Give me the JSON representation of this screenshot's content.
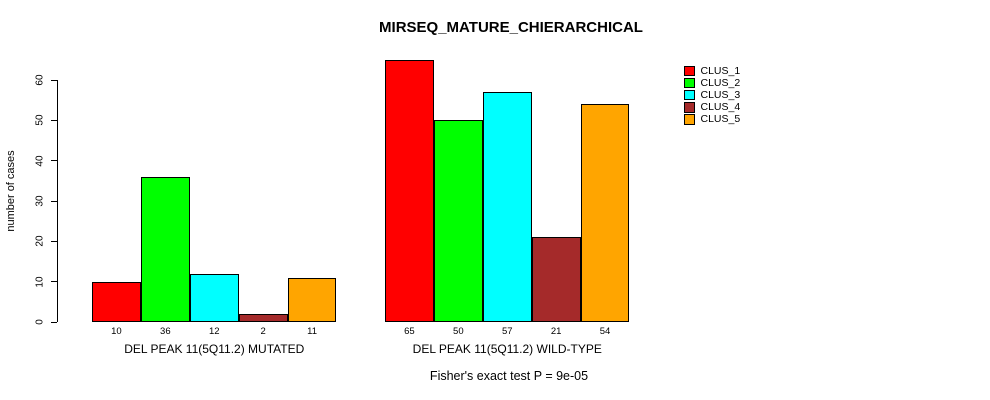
{
  "chart_data": {
    "type": "bar",
    "title": "MIRSEQ_MATURE_CHIERARCHICAL",
    "ylabel": "number of cases",
    "xlabel": "",
    "caption": "Fisher's exact test P = 9e-05",
    "ylim": [
      0,
      60
    ],
    "yticks": [
      0,
      10,
      20,
      30,
      40,
      50,
      60
    ],
    "grid": false,
    "legend_position": "top-right",
    "bar_value_labels_shown": true,
    "categories": [
      "DEL PEAK 11(5Q11.2) MUTATED",
      "DEL PEAK 11(5Q11.2) WILD-TYPE"
    ],
    "series": [
      {
        "name": "CLUS_1",
        "color": "#FF0000",
        "values": [
          10,
          65
        ]
      },
      {
        "name": "CLUS_2",
        "color": "#00FF00",
        "values": [
          36,
          50
        ]
      },
      {
        "name": "CLUS_3",
        "color": "#00FFFF",
        "values": [
          12,
          57
        ]
      },
      {
        "name": "CLUS_4",
        "color": "#A52A2A",
        "values": [
          2,
          21
        ]
      },
      {
        "name": "CLUS_5",
        "color": "#FFA500",
        "values": [
          11,
          54
        ]
      }
    ],
    "colors": {
      "axis": "#000000",
      "text": "#000000",
      "background": "#FFFFFF"
    }
  }
}
